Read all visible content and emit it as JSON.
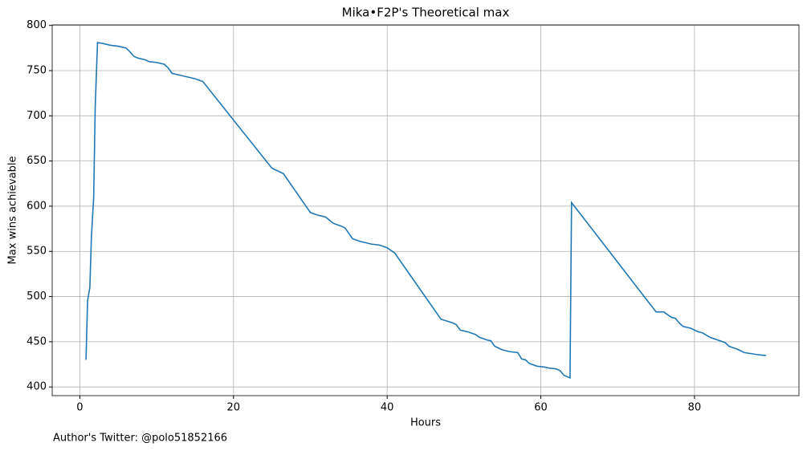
{
  "chart_data": {
    "type": "line",
    "title": "Mika•F2P's Theoretical max",
    "x_label": "Hours",
    "y_label": "Max wins achievable",
    "footnote": "Author's Twitter: @polo51852166",
    "x": [
      0.8,
      1.0,
      1.3,
      1.5,
      1.8,
      2.0,
      2.3,
      3,
      4,
      5,
      6,
      6.5,
      7,
      7.5,
      8.5,
      9,
      10,
      11,
      11.5,
      12,
      13,
      14,
      15,
      16,
      25,
      26,
      26.5,
      30,
      31,
      32,
      33,
      34,
      34.5,
      35,
      35.5,
      36.5,
      38,
      39,
      40,
      41,
      47,
      48.5,
      49,
      49.5,
      50.5,
      51.5,
      52,
      53,
      53.5,
      54,
      55,
      56,
      57,
      57.5,
      58,
      58.5,
      59.5,
      60.5,
      61,
      62,
      62.5,
      63,
      63.8,
      64,
      75,
      76,
      77,
      77.5,
      78,
      78.5,
      79.5,
      80.5,
      81,
      82,
      83,
      84,
      84.5,
      85.5,
      86,
      86.5,
      88,
      89,
      89.3
    ],
    "series": [
      {
        "name": "Max wins achievable",
        "color": "#1f77b4",
        "values": [
          430,
          495,
          510,
          565,
          610,
          710,
          781,
          780,
          778,
          777,
          775,
          771,
          766,
          764,
          762,
          760,
          759,
          757,
          753,
          747,
          745,
          743,
          741,
          738,
          642,
          638,
          636,
          593,
          590,
          588,
          581,
          578,
          576,
          570,
          564,
          561,
          558,
          557,
          554,
          548,
          475,
          471,
          469,
          463,
          461,
          458,
          455,
          452,
          451,
          445,
          441,
          439,
          438,
          431,
          430,
          426,
          423,
          422,
          421,
          420,
          418,
          413,
          410,
          604,
          483,
          483,
          477,
          476,
          471,
          467,
          465,
          461,
          460,
          455,
          452,
          449,
          445,
          442,
          440,
          438,
          436,
          435,
          435
        ]
      }
    ],
    "xlim": [
      -3.6,
      93.6
    ],
    "ylim": [
      390.4,
      800.6
    ],
    "xticks": [
      0,
      20,
      40,
      60,
      80
    ],
    "yticks": [
      400,
      450,
      500,
      550,
      600,
      650,
      700,
      750,
      800
    ],
    "grid": true
  }
}
